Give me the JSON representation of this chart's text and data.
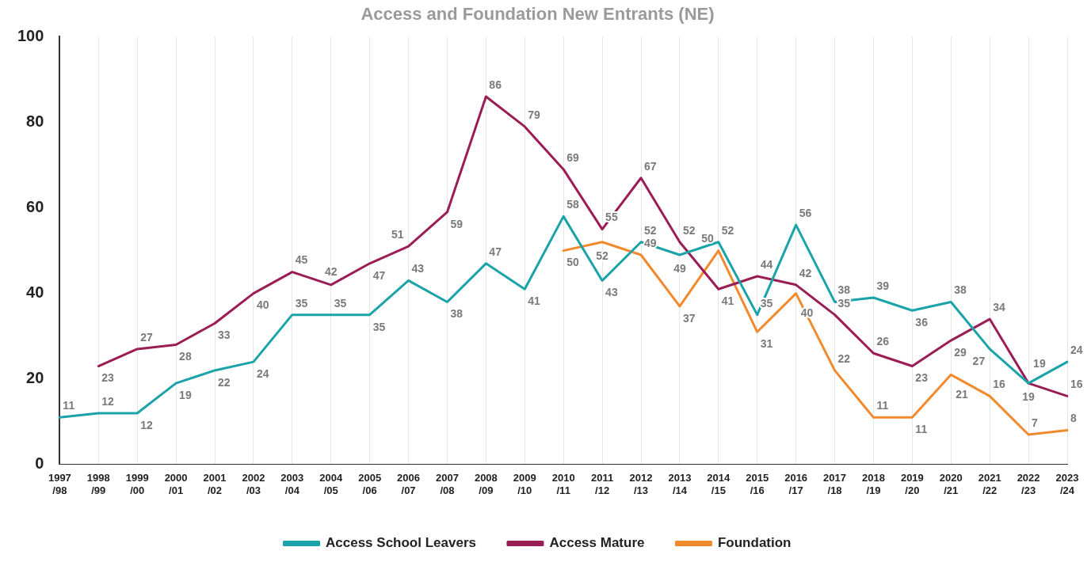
{
  "chart_data": {
    "type": "line",
    "title": "Access and Foundation New Entrants (NE)",
    "categories": [
      "1997/98",
      "1998/99",
      "1999/00",
      "2000/01",
      "2001/02",
      "2002/03",
      "2003/04",
      "2004/05",
      "2005/06",
      "2006/07",
      "2007/08",
      "2008/09",
      "2009/10",
      "2010/11",
      "2011/12",
      "2012/13",
      "2013/14",
      "2014/15",
      "2015/16",
      "2016/17",
      "2017/18",
      "2018/19",
      "2019/20",
      "2020/21",
      "2021/22",
      "2022/23",
      "2023/24"
    ],
    "series": [
      {
        "name": "Access School Leavers",
        "color": "#1aa3a9",
        "values": [
          11,
          12,
          12,
          19,
          22,
          24,
          35,
          35,
          35,
          43,
          38,
          47,
          41,
          58,
          43,
          52,
          49,
          52,
          35,
          56,
          38,
          39,
          36,
          38,
          27,
          19,
          24
        ]
      },
      {
        "name": "Access Mature",
        "color": "#9b1d55",
        "values": [
          null,
          23,
          27,
          28,
          33,
          40,
          45,
          42,
          47,
          51,
          59,
          86,
          79,
          69,
          55,
          67,
          52,
          41,
          44,
          42,
          35,
          26,
          23,
          29,
          34,
          19,
          16
        ]
      },
      {
        "name": "Foundation",
        "color": "#f08a2c",
        "values": [
          null,
          null,
          null,
          null,
          null,
          null,
          null,
          null,
          null,
          null,
          null,
          null,
          null,
          50,
          52,
          49,
          37,
          50,
          31,
          40,
          22,
          11,
          11,
          21,
          16,
          7,
          8
        ]
      }
    ],
    "ylim": [
      0,
      100
    ],
    "yticks": [
      0,
      20,
      40,
      60,
      80,
      100
    ],
    "grid": "x",
    "legend": "bottom",
    "data_labels": true,
    "marker": "none",
    "line_style": "solid"
  }
}
